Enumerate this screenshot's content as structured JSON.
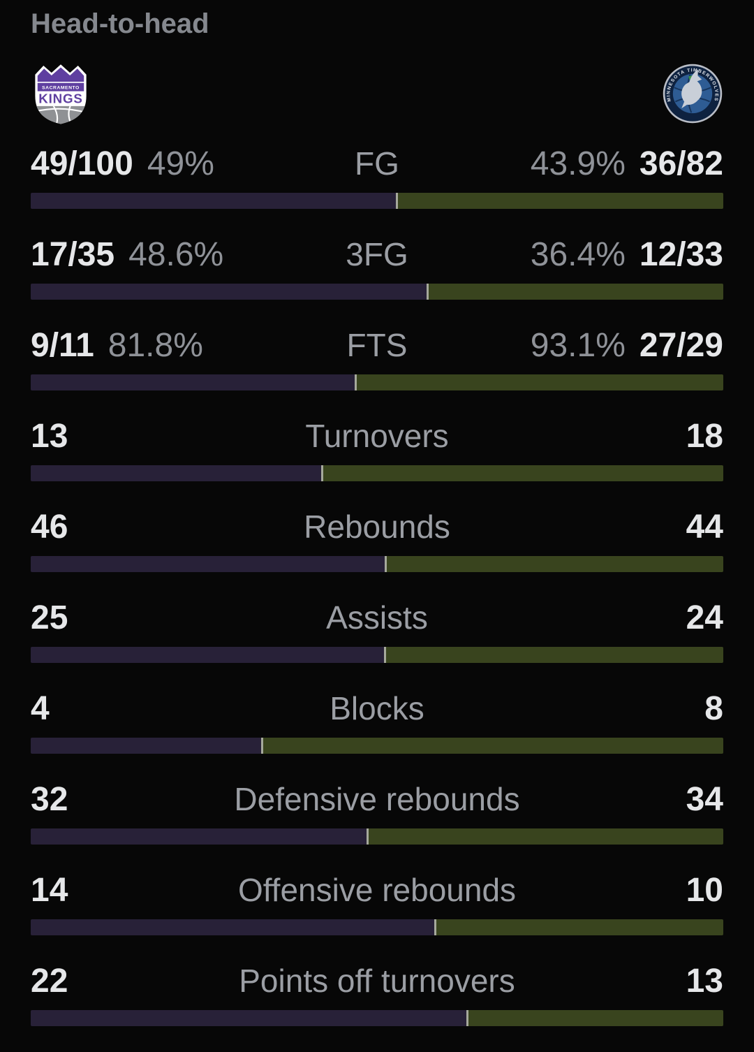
{
  "title": "Head-to-head",
  "teams": {
    "home": {
      "name": "Sacramento Kings",
      "logo_line1": "SACRAMENTO",
      "logo_line2": "KINGS",
      "primary_color": "#5f3fa0"
    },
    "away": {
      "name": "Minnesota Timberwolves",
      "logo_arc_text": "MINNESOTA TIMBERWOLVES",
      "primary_color": "#0e2240"
    }
  },
  "bar_colors": {
    "home_segment": "#282138",
    "away_segment": "#39441e",
    "divider": "#a6a99c"
  },
  "chart_data": {
    "type": "bar",
    "note": "head-to-head split bars, left share = home value vs away value",
    "categories": [
      "FG",
      "3FG",
      "FTS",
      "Turnovers",
      "Rebounds",
      "Assists",
      "Blocks",
      "Defensive rebounds",
      "Offensive rebounds",
      "Points off turnovers"
    ],
    "series": [
      {
        "name": "Sacramento Kings",
        "values": [
          49,
          48.6,
          81.8,
          13,
          46,
          25,
          4,
          32,
          14,
          22
        ]
      },
      {
        "name": "Minnesota Timberwolves",
        "values": [
          43.9,
          36.4,
          93.1,
          18,
          44,
          24,
          8,
          34,
          10,
          13
        ]
      }
    ]
  },
  "rows": [
    {
      "label": "FG",
      "left_value": "49/100",
      "left_pct": "49%",
      "right_pct": "43.9%",
      "right_value": "36/82",
      "left_ratio": 0.527
    },
    {
      "label": "3FG",
      "left_value": "17/35",
      "left_pct": "48.6%",
      "right_pct": "36.4%",
      "right_value": "12/33",
      "left_ratio": 0.572
    },
    {
      "label": "FTS",
      "left_value": "9/11",
      "left_pct": "81.8%",
      "right_pct": "93.1%",
      "right_value": "27/29",
      "left_ratio": 0.468
    },
    {
      "label": "Turnovers",
      "left_value": "13",
      "right_value": "18",
      "left_ratio": 0.419
    },
    {
      "label": "Rebounds",
      "left_value": "46",
      "right_value": "44",
      "left_ratio": 0.511
    },
    {
      "label": "Assists",
      "left_value": "25",
      "right_value": "24",
      "left_ratio": 0.51
    },
    {
      "label": "Blocks",
      "left_value": "4",
      "right_value": "8",
      "left_ratio": 0.333
    },
    {
      "label": "Defensive rebounds",
      "left_value": "32",
      "right_value": "34",
      "left_ratio": 0.485
    },
    {
      "label": "Offensive rebounds",
      "left_value": "14",
      "right_value": "10",
      "left_ratio": 0.583
    },
    {
      "label": "Points off turnovers",
      "left_value": "22",
      "right_value": "13",
      "left_ratio": 0.629
    }
  ]
}
